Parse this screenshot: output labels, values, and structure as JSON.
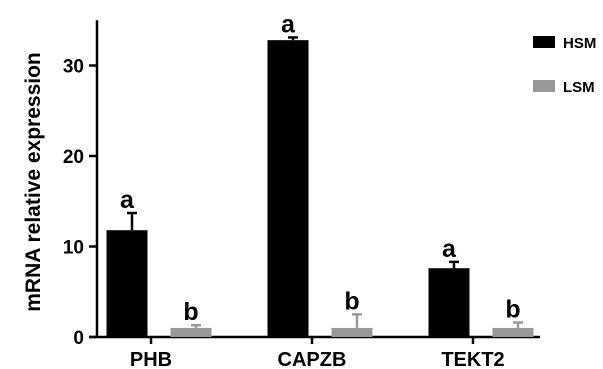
{
  "chart_data": {
    "type": "bar",
    "categories": [
      "PHB",
      "CAPZB",
      "TEKT2"
    ],
    "series": [
      {
        "name": "HSM",
        "color": "#000000",
        "values": [
          11.8,
          32.8,
          7.6
        ],
        "error": [
          1.9,
          0.3,
          0.7
        ],
        "significance": [
          "a",
          "a",
          "a"
        ]
      },
      {
        "name": "LSM",
        "color": "#999999",
        "values": [
          1.0,
          1.0,
          1.0
        ],
        "error": [
          0.3,
          1.5,
          0.6
        ],
        "significance": [
          "b",
          "b",
          "b"
        ]
      }
    ],
    "ylabel": "mRNA relative expression",
    "xlabel": "",
    "ylim": [
      0,
      35
    ],
    "yticks": [
      "0",
      "10",
      "20",
      "30"
    ],
    "legend_position": "top-right",
    "grid": false
  }
}
